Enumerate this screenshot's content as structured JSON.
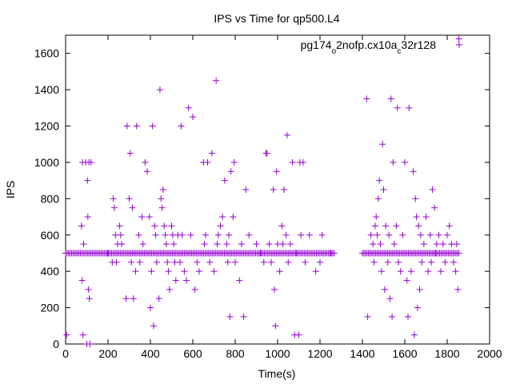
{
  "chart_data": {
    "type": "scatter",
    "title": "IPS vs Time for qp500.L4",
    "xlabel": "Time(s)",
    "ylabel": "IPS",
    "xlim": [
      0,
      2000
    ],
    "ylim": [
      0,
      1700
    ],
    "x_ticks": [
      0,
      200,
      400,
      600,
      800,
      1000,
      1200,
      1400,
      1600,
      1800,
      2000
    ],
    "y_ticks": [
      0,
      200,
      400,
      600,
      800,
      1000,
      1200,
      1400,
      1600
    ],
    "grid": false,
    "legend_placement": "top-right",
    "marker": "plus",
    "series": [
      {
        "name_parts": [
          {
            "text": "pg174",
            "sub": false
          },
          {
            "text": "o",
            "sub": true
          },
          {
            "text": "2nofp.cx10a",
            "sub": false
          },
          {
            "text": "c",
            "sub": true
          },
          {
            "text": "32r128",
            "sub": false
          }
        ],
        "color": "#9400d3",
        "baseline_value": 500,
        "baseline_ranges": [
          [
            0,
            1270
          ],
          [
            1400,
            1860
          ]
        ],
        "points": [
          [
            5,
            50
          ],
          [
            75,
            650
          ],
          [
            78,
            350
          ],
          [
            80,
            1000
          ],
          [
            82,
            50
          ],
          [
            85,
            550
          ],
          [
            95,
            1000
          ],
          [
            100,
            0
          ],
          [
            103,
            900
          ],
          [
            105,
            700
          ],
          [
            108,
            300
          ],
          [
            110,
            1000
          ],
          [
            112,
            250
          ],
          [
            115,
            0
          ],
          [
            120,
            1000
          ],
          [
            200,
            500
          ],
          [
            220,
            450
          ],
          [
            225,
            800
          ],
          [
            230,
            750
          ],
          [
            235,
            600
          ],
          [
            240,
            450
          ],
          [
            245,
            550
          ],
          [
            255,
            650
          ],
          [
            260,
            600
          ],
          [
            265,
            550
          ],
          [
            285,
            250
          ],
          [
            290,
            1200
          ],
          [
            300,
            800
          ],
          [
            305,
            1050
          ],
          [
            310,
            450
          ],
          [
            315,
            750
          ],
          [
            320,
            250
          ],
          [
            330,
            400
          ],
          [
            335,
            1200
          ],
          [
            345,
            600
          ],
          [
            350,
            450
          ],
          [
            360,
            700
          ],
          [
            365,
            550
          ],
          [
            375,
            1000
          ],
          [
            385,
            950
          ],
          [
            395,
            700
          ],
          [
            400,
            200
          ],
          [
            405,
            400
          ],
          [
            410,
            1200
          ],
          [
            415,
            100
          ],
          [
            420,
            650
          ],
          [
            425,
            600
          ],
          [
            430,
            450
          ],
          [
            440,
            250
          ],
          [
            445,
            1400
          ],
          [
            450,
            800
          ],
          [
            455,
            750
          ],
          [
            460,
            850
          ],
          [
            465,
            650
          ],
          [
            470,
            600
          ],
          [
            475,
            550
          ],
          [
            480,
            450
          ],
          [
            485,
            400
          ],
          [
            490,
            300
          ],
          [
            500,
            650
          ],
          [
            505,
            600
          ],
          [
            510,
            550
          ],
          [
            515,
            450
          ],
          [
            520,
            350
          ],
          [
            530,
            600
          ],
          [
            540,
            450
          ],
          [
            545,
            1200
          ],
          [
            550,
            600
          ],
          [
            560,
            400
          ],
          [
            570,
            350
          ],
          [
            580,
            1300
          ],
          [
            590,
            600
          ],
          [
            600,
            1250
          ],
          [
            610,
            300
          ],
          [
            620,
            450
          ],
          [
            630,
            400
          ],
          [
            650,
            1000
          ],
          [
            655,
            550
          ],
          [
            660,
            600
          ],
          [
            670,
            1000
          ],
          [
            680,
            450
          ],
          [
            690,
            1050
          ],
          [
            700,
            400
          ],
          [
            710,
            1450
          ],
          [
            715,
            550
          ],
          [
            720,
            600
          ],
          [
            730,
            650
          ],
          [
            740,
            700
          ],
          [
            750,
            900
          ],
          [
            760,
            550
          ],
          [
            765,
            450
          ],
          [
            770,
            600
          ],
          [
            775,
            150
          ],
          [
            780,
            950
          ],
          [
            790,
            700
          ],
          [
            795,
            1000
          ],
          [
            800,
            450
          ],
          [
            820,
            350
          ],
          [
            830,
            550
          ],
          [
            840,
            150
          ],
          [
            850,
            850
          ],
          [
            865,
            600
          ],
          [
            900,
            550
          ],
          [
            920,
            500
          ],
          [
            935,
            450
          ],
          [
            945,
            1050
          ],
          [
            950,
            1050
          ],
          [
            960,
            550
          ],
          [
            970,
            450
          ],
          [
            980,
            850
          ],
          [
            985,
            300
          ],
          [
            990,
            100
          ],
          [
            995,
            950
          ],
          [
            1000,
            550
          ],
          [
            1010,
            400
          ],
          [
            1020,
            650
          ],
          [
            1025,
            550
          ],
          [
            1030,
            850
          ],
          [
            1040,
            600
          ],
          [
            1045,
            1150
          ],
          [
            1050,
            450
          ],
          [
            1060,
            550
          ],
          [
            1070,
            1000
          ],
          [
            1080,
            50
          ],
          [
            1090,
            500
          ],
          [
            1100,
            50
          ],
          [
            1105,
            1000
          ],
          [
            1110,
            600
          ],
          [
            1120,
            1000
          ],
          [
            1130,
            450
          ],
          [
            1150,
            600
          ],
          [
            1180,
            400
          ],
          [
            1200,
            450
          ],
          [
            1210,
            600
          ],
          [
            1250,
            500
          ],
          [
            1420,
            1350
          ],
          [
            1425,
            150
          ],
          [
            1440,
            600
          ],
          [
            1450,
            550
          ],
          [
            1455,
            450
          ],
          [
            1460,
            650
          ],
          [
            1465,
            700
          ],
          [
            1470,
            600
          ],
          [
            1475,
            800
          ],
          [
            1480,
            900
          ],
          [
            1485,
            550
          ],
          [
            1490,
            400
          ],
          [
            1495,
            1100
          ],
          [
            1500,
            850
          ],
          [
            1505,
            300
          ],
          [
            1510,
            650
          ],
          [
            1520,
            450
          ],
          [
            1525,
            600
          ],
          [
            1530,
            250
          ],
          [
            1535,
            1350
          ],
          [
            1540,
            150
          ],
          [
            1545,
            1000
          ],
          [
            1550,
            550
          ],
          [
            1560,
            650
          ],
          [
            1565,
            1300
          ],
          [
            1570,
            450
          ],
          [
            1580,
            400
          ],
          [
            1590,
            600
          ],
          [
            1600,
            1000
          ],
          [
            1610,
            350
          ],
          [
            1615,
            150
          ],
          [
            1620,
            1300
          ],
          [
            1630,
            400
          ],
          [
            1640,
            950
          ],
          [
            1645,
            50
          ],
          [
            1650,
            800
          ],
          [
            1655,
            700
          ],
          [
            1660,
            200
          ],
          [
            1665,
            650
          ],
          [
            1670,
            300
          ],
          [
            1675,
            600
          ],
          [
            1680,
            450
          ],
          [
            1690,
            550
          ],
          [
            1700,
            700
          ],
          [
            1710,
            400
          ],
          [
            1720,
            600
          ],
          [
            1725,
            450
          ],
          [
            1730,
            850
          ],
          [
            1740,
            750
          ],
          [
            1745,
            500
          ],
          [
            1750,
            550
          ],
          [
            1760,
            600
          ],
          [
            1770,
            400
          ],
          [
            1780,
            550
          ],
          [
            1790,
            450
          ],
          [
            1800,
            600
          ],
          [
            1810,
            650
          ],
          [
            1820,
            550
          ],
          [
            1830,
            450
          ],
          [
            1840,
            400
          ],
          [
            1845,
            550
          ],
          [
            1850,
            300
          ],
          [
            1855,
            1680
          ]
        ]
      }
    ]
  }
}
